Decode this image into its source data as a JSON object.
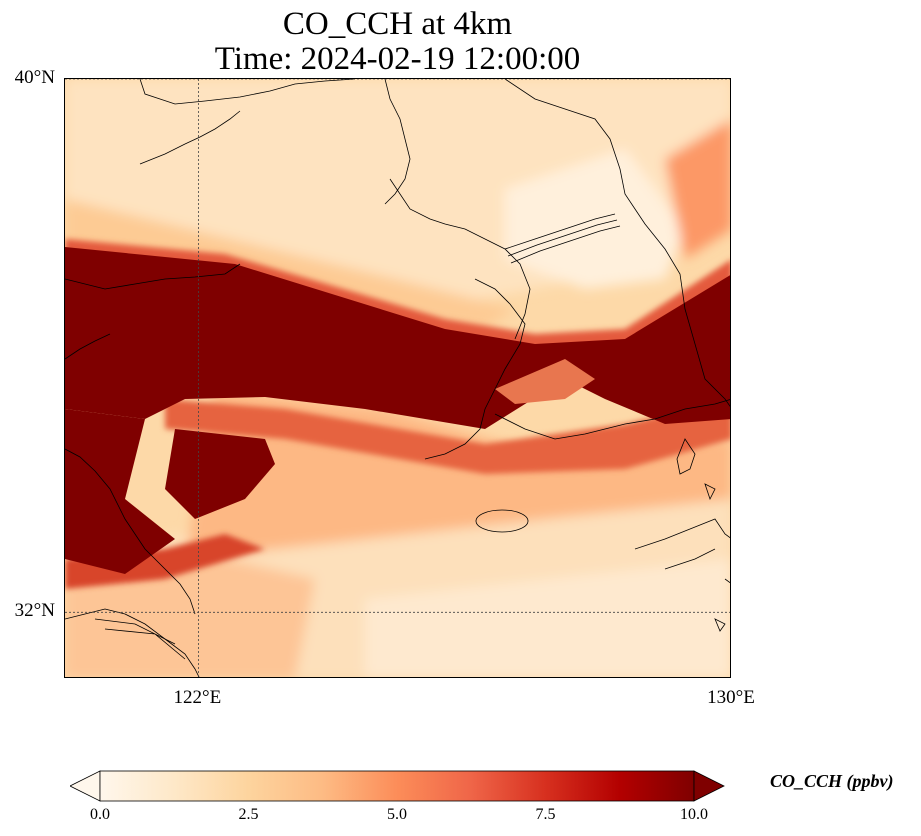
{
  "title": {
    "line1": "CO_CCH at 4km",
    "line2": "Time: 2024-02-19 12:00:00"
  },
  "map": {
    "lon_range": [
      120,
      130
    ],
    "lat_range": [
      31,
      40
    ],
    "lat_ticks": [
      {
        "value": 40,
        "label": "40°N"
      },
      {
        "value": 32,
        "label": "32°N"
      }
    ],
    "lon_ticks": [
      {
        "value": 122,
        "label": "122°E"
      },
      {
        "value": 130,
        "label": "130°E"
      }
    ],
    "gridlines": "dotted"
  },
  "chart_data": {
    "type": "heatmap",
    "variable": "CO_CCH",
    "units": "ppbv",
    "colormap": "OrRd",
    "colorbar": {
      "min": 0.0,
      "max": 10.0,
      "extend": "both",
      "ticks": [
        "0.0",
        "2.5",
        "5.0",
        "7.5",
        "10.0"
      ],
      "label": "CO_CCH (ppbv)",
      "colors": [
        "#fff7ec",
        "#fee8c8",
        "#fdd49e",
        "#fdbb84",
        "#fc8d59",
        "#ef6548",
        "#d7301f",
        "#b30000",
        "#7f0000"
      ]
    }
  }
}
